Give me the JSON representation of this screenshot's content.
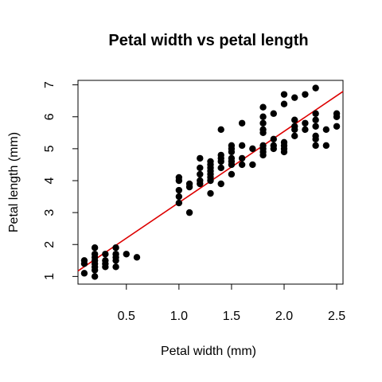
{
  "chart_data": {
    "type": "scatter",
    "title": "Petal width vs petal length",
    "xlabel": "Petal width (mm)",
    "ylabel": "Petal length (mm)",
    "xlim": [
      0.04,
      2.56
    ],
    "ylim": [
      0.76,
      7.14
    ],
    "xticks": [
      "0.5",
      "1.0",
      "1.5",
      "2.0",
      "2.5"
    ],
    "yticks": [
      "1",
      "2",
      "3",
      "4",
      "5",
      "6",
      "7"
    ],
    "grid": false,
    "legend": "none",
    "point_color": "#000000",
    "regression_line": {
      "intercept": 1.084,
      "slope": 2.23,
      "color": "#dd0000"
    },
    "points": [
      [
        0.1,
        1.1
      ],
      [
        0.1,
        1.4
      ],
      [
        0.1,
        1.5
      ],
      [
        0.2,
        1.0
      ],
      [
        0.2,
        1.2
      ],
      [
        0.2,
        1.3
      ],
      [
        0.2,
        1.4
      ],
      [
        0.2,
        1.5
      ],
      [
        0.2,
        1.6
      ],
      [
        0.2,
        1.7
      ],
      [
        0.2,
        1.9
      ],
      [
        0.3,
        1.3
      ],
      [
        0.3,
        1.4
      ],
      [
        0.3,
        1.5
      ],
      [
        0.3,
        1.7
      ],
      [
        0.4,
        1.3
      ],
      [
        0.4,
        1.5
      ],
      [
        0.4,
        1.6
      ],
      [
        0.4,
        1.7
      ],
      [
        0.4,
        1.9
      ],
      [
        0.5,
        1.7
      ],
      [
        0.6,
        1.6
      ],
      [
        1.0,
        3.3
      ],
      [
        1.0,
        3.5
      ],
      [
        1.0,
        3.7
      ],
      [
        1.0,
        4.0
      ],
      [
        1.0,
        4.1
      ],
      [
        1.1,
        3.0
      ],
      [
        1.1,
        3.8
      ],
      [
        1.1,
        3.9
      ],
      [
        1.2,
        3.9
      ],
      [
        1.2,
        4.0
      ],
      [
        1.2,
        4.2
      ],
      [
        1.2,
        4.4
      ],
      [
        1.2,
        4.7
      ],
      [
        1.3,
        3.6
      ],
      [
        1.3,
        4.0
      ],
      [
        1.3,
        4.1
      ],
      [
        1.3,
        4.2
      ],
      [
        1.3,
        4.3
      ],
      [
        1.3,
        4.4
      ],
      [
        1.3,
        4.5
      ],
      [
        1.3,
        4.6
      ],
      [
        1.4,
        3.9
      ],
      [
        1.4,
        4.4
      ],
      [
        1.4,
        4.6
      ],
      [
        1.4,
        4.7
      ],
      [
        1.4,
        4.8
      ],
      [
        1.4,
        5.6
      ],
      [
        1.5,
        4.2
      ],
      [
        1.5,
        4.5
      ],
      [
        1.5,
        4.6
      ],
      [
        1.5,
        4.7
      ],
      [
        1.5,
        4.9
      ],
      [
        1.5,
        5.0
      ],
      [
        1.5,
        5.1
      ],
      [
        1.6,
        4.5
      ],
      [
        1.6,
        4.7
      ],
      [
        1.6,
        5.1
      ],
      [
        1.6,
        5.8
      ],
      [
        1.7,
        4.5
      ],
      [
        1.7,
        5.0
      ],
      [
        1.8,
        4.8
      ],
      [
        1.8,
        4.9
      ],
      [
        1.8,
        5.0
      ],
      [
        1.8,
        5.1
      ],
      [
        1.8,
        5.5
      ],
      [
        1.8,
        5.6
      ],
      [
        1.8,
        5.8
      ],
      [
        1.8,
        6.0
      ],
      [
        1.8,
        6.3
      ],
      [
        1.9,
        5.0
      ],
      [
        1.9,
        5.1
      ],
      [
        1.9,
        5.3
      ],
      [
        1.9,
        6.1
      ],
      [
        2.0,
        4.9
      ],
      [
        2.0,
        5.0
      ],
      [
        2.0,
        5.1
      ],
      [
        2.0,
        5.2
      ],
      [
        2.0,
        6.4
      ],
      [
        2.0,
        6.7
      ],
      [
        2.1,
        5.4
      ],
      [
        2.1,
        5.6
      ],
      [
        2.1,
        5.7
      ],
      [
        2.1,
        5.9
      ],
      [
        2.1,
        6.6
      ],
      [
        2.2,
        5.6
      ],
      [
        2.2,
        5.8
      ],
      [
        2.2,
        6.7
      ],
      [
        2.3,
        5.1
      ],
      [
        2.3,
        5.3
      ],
      [
        2.3,
        5.4
      ],
      [
        2.3,
        5.7
      ],
      [
        2.3,
        5.9
      ],
      [
        2.3,
        6.1
      ],
      [
        2.3,
        6.9
      ],
      [
        2.4,
        5.1
      ],
      [
        2.4,
        5.6
      ],
      [
        2.5,
        5.7
      ],
      [
        2.5,
        6.0
      ],
      [
        2.5,
        6.1
      ]
    ]
  }
}
